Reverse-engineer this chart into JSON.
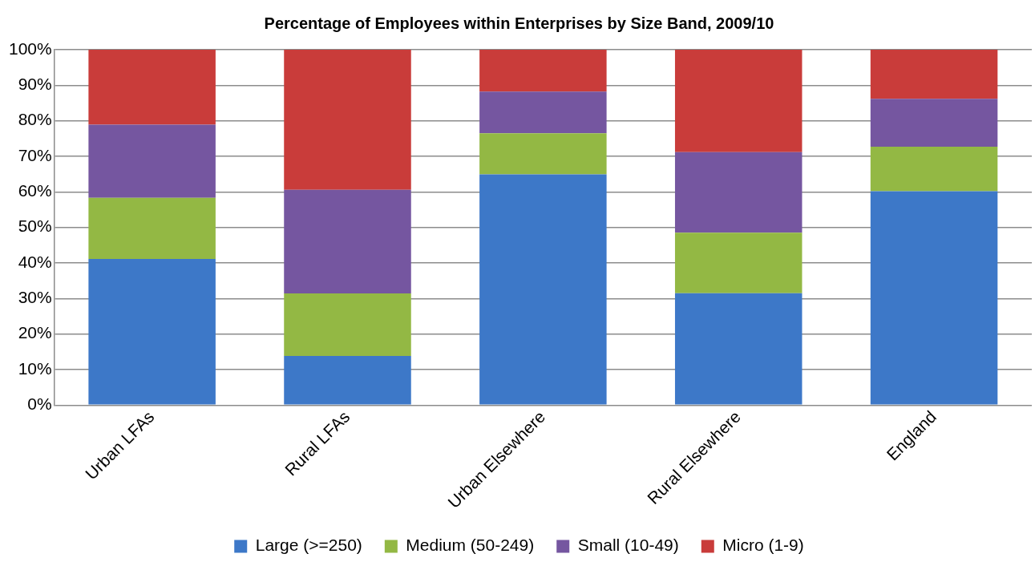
{
  "chart_data": {
    "type": "bar",
    "title": "Percentage of Employees within Enterprises by Size Band, 2009/10",
    "categories": [
      "Urban LFAs",
      "Rural LFAs",
      "Urban Elsewhere",
      "Rural Elsewhere",
      "England"
    ],
    "stacked": true,
    "series": [
      {
        "name": "Large (>=250)",
        "color": "#3d78c8",
        "values": [
          41.1,
          13.8,
          64.9,
          31.5,
          60.2
        ]
      },
      {
        "name": "Medium (50-249)",
        "color": "#93b844",
        "values": [
          17.2,
          17.6,
          11.6,
          17.0,
          12.5
        ]
      },
      {
        "name": "Small (10-49)",
        "color": "#7556a0",
        "values": [
          20.6,
          29.2,
          11.7,
          22.7,
          13.5
        ]
      },
      {
        "name": "Micro (1-9)",
        "color": "#c93c3a",
        "values": [
          21.1,
          39.4,
          11.8,
          28.8,
          13.8
        ]
      }
    ],
    "ylim": [
      0,
      100
    ],
    "yticks": [
      {
        "value": 0,
        "label": "0%"
      },
      {
        "value": 10,
        "label": "10%"
      },
      {
        "value": 20,
        "label": "20%"
      },
      {
        "value": 30,
        "label": "30%"
      },
      {
        "value": 40,
        "label": "40%"
      },
      {
        "value": 50,
        "label": "50%"
      },
      {
        "value": 60,
        "label": "60%"
      },
      {
        "value": 70,
        "label": "70%"
      },
      {
        "value": 80,
        "label": "80%"
      },
      {
        "value": 90,
        "label": "90%"
      },
      {
        "value": 100,
        "label": "100%"
      }
    ],
    "grid": "y",
    "legend": "bottom"
  }
}
